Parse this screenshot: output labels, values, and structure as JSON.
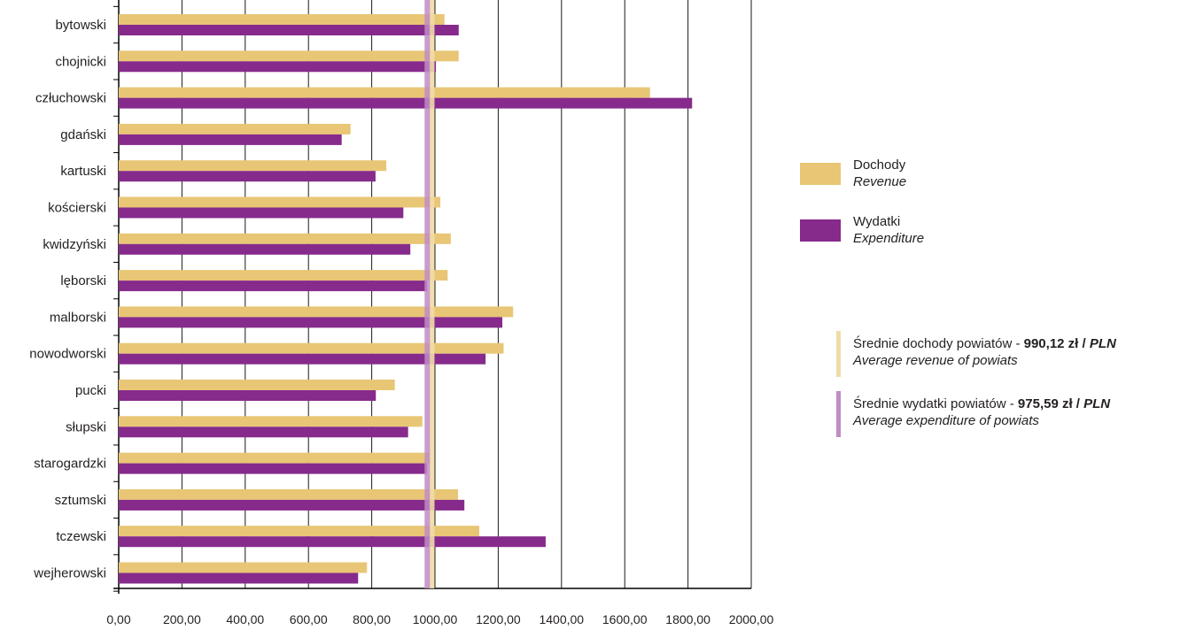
{
  "colors": {
    "revenue": "#E8C675",
    "expenditure": "#862A8C",
    "avg_revenue_line": "#EFDCA8",
    "avg_expenditure_line": "#C08CC4",
    "grid": "#1a1a1a"
  },
  "legend": {
    "revenue_pl": "Dochody",
    "revenue_en": "Revenue",
    "expenditure_pl": "Wydatki",
    "expenditure_en": "Expenditure",
    "avg_revenue_prefix": "Średnie dochody powiatów - ",
    "avg_revenue_value": "990,12 zł / ",
    "avg_revenue_unit": "PLN",
    "avg_revenue_en": "Average revenue of powiats",
    "avg_expenditure_prefix": "Średnie wydatki powiatów - ",
    "avg_expenditure_value": "975,59 zł / ",
    "avg_expenditure_unit": "PLN",
    "avg_expenditure_en": "Average expenditure of powiats"
  },
  "chart_data": {
    "type": "bar",
    "orientation": "horizontal",
    "categories": [
      "bytowski",
      "chojnicki",
      "człuchowski",
      "gdański",
      "kartuski",
      "kościerski",
      "kwidzyński",
      "lęborski",
      "malborski",
      "nowodworski",
      "pucki",
      "słupski",
      "starogardzki",
      "sztumski",
      "tczewski",
      "wejherowski"
    ],
    "series": [
      {
        "name": "Dochody / Revenue",
        "values": [
          1030,
          1075,
          1680,
          733,
          846,
          1017,
          1050,
          1040,
          1247,
          1217,
          873,
          960,
          985,
          1073,
          1140,
          785
        ]
      },
      {
        "name": "Wydatki / Expenditure",
        "values": [
          1075,
          1003,
          1813,
          705,
          812,
          900,
          922,
          975,
          1213,
          1160,
          813,
          915,
          975,
          1093,
          1350,
          757
        ]
      }
    ],
    "reference_lines": [
      {
        "name": "Średnie dochody powiatów",
        "value": 990.12
      },
      {
        "name": "Średnie wydatki powiatów",
        "value": 975.59
      }
    ],
    "xlim": [
      0,
      2000
    ],
    "xticks": [
      "0,00",
      "200,00",
      "400,00",
      "600,00",
      "800,00",
      "1000,00",
      "1200,00",
      "1400,00",
      "1600,00",
      "1800,00",
      "2000,00"
    ],
    "x_unit_prefix": "zł / ",
    "x_unit": "PLN",
    "grid": true,
    "legend_position": "right"
  }
}
